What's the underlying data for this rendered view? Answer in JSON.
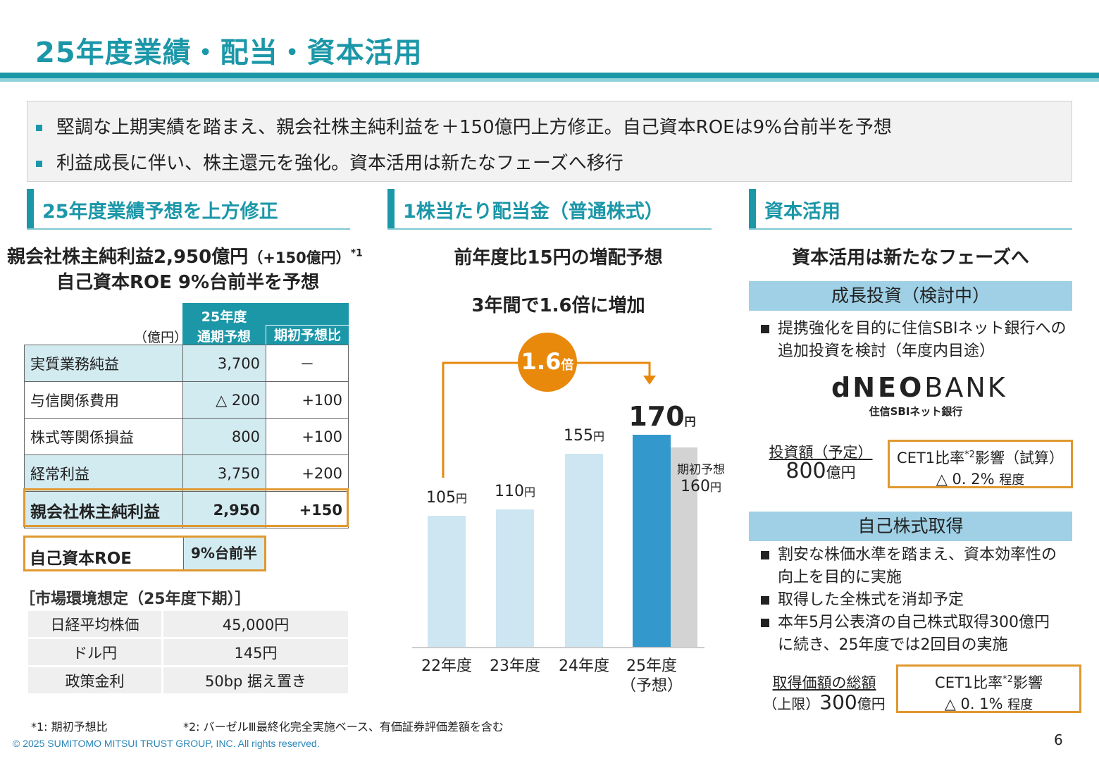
{
  "title": "25年度業績・配当・資本活用",
  "summary": [
    "堅調な上期実績を踏まえ、親会社株主純利益を＋150億円上方修正。自己資本ROEは9%台前半を予想",
    "利益成長に伴い、株主還元を強化。資本活用は新たなフェーズへ移行"
  ],
  "left": {
    "header": "25年度業績予想を上方修正",
    "headline1": "親会社株主純利益2,950億円",
    "headline1_paren": "（+150億円）",
    "headline1_note": "*1",
    "headline2": "自己資本ROE 9%台前半を予想",
    "unit": "（億円）",
    "col1_line1": "25年度",
    "col1_line2": "通期予想",
    "col2": "期初予想比",
    "rows": [
      {
        "label": "実質業務純益",
        "value": "3,700",
        "diff": "－"
      },
      {
        "label": "与信関係費用",
        "value": "△ 200",
        "diff": "+100"
      },
      {
        "label": "株式等関係損益",
        "value": "800",
        "diff": "+100"
      },
      {
        "label": "経常利益",
        "value": "3,750",
        "diff": "+200"
      },
      {
        "label": "親会社株主純利益",
        "value": "2,950",
        "diff": "+150"
      }
    ],
    "roe_label": "自己資本ROE",
    "roe_value": "9%台前半",
    "market_title": "［市場環境想定（25年度下期）］",
    "market": [
      {
        "label": "日経平均株価",
        "value": "45,000円"
      },
      {
        "label": "ドル円",
        "value": "145円"
      },
      {
        "label": "政策金利",
        "value": "50bp 据え置き"
      }
    ]
  },
  "middle": {
    "header": "1株当たり配当金（普通株式）",
    "headline": "前年度比15円の増配予想",
    "subhead": "3年間で1.6倍に増加",
    "badge": "1.6",
    "badge_unit": "倍"
  },
  "chart_data": {
    "type": "bar",
    "unit": "円",
    "categories": [
      "22年度",
      "23年度",
      "24年度",
      "25年度"
    ],
    "category_sub": [
      "",
      "",
      "",
      "（予想）"
    ],
    "values": [
      105,
      110,
      155,
      170
    ],
    "initial_forecast": {
      "label": "期初予想",
      "value": 160
    },
    "colors": {
      "past": "#cde6f2",
      "current": "#3399cc",
      "initial": "#d3d3d3",
      "accent": "#e8890c"
    }
  },
  "right": {
    "header": "資本活用",
    "headline": "資本活用は新たなフェーズへ",
    "growth": {
      "title": "成長投資（検討中）",
      "bullet1": "提携強化を目的に住信SBIネット銀行への",
      "bullet1b": "追加投資を検討（年度内目途）",
      "logo": "dNEOBANK",
      "logo_sub": "住信SBIネット銀行",
      "amount_label": "投資額（予定）",
      "amount": "800",
      "amount_unit": "億円",
      "cet_label": "CET1比率",
      "cet_note": "*2",
      "cet_label2": "影響（試算）",
      "cet_value": "△ 0. 2%",
      "cet_suffix": "程度"
    },
    "buyback": {
      "title": "自己株式取得",
      "bullets": [
        [
          "割安な株価水準を踏まえ、資本効率性の",
          "向上を目的に実施"
        ],
        [
          "取得した全株式を消却予定"
        ],
        [
          "本年5月公表済の自己株式取得300億円",
          "に続き、25年度では2回目の実施"
        ]
      ],
      "amount_label": "取得価額の総額",
      "amount_prefix": "（上限）",
      "amount": "300",
      "amount_unit": "億円",
      "cet_label": "CET1比率",
      "cet_note": "*2",
      "cet_label2": "影響",
      "cet_value": "△ 0. 1%",
      "cet_suffix": "程度"
    }
  },
  "footnotes": {
    "n1": "*1: 期初予想比",
    "n2": "*2: バーゼルⅢ最終化完全実施ベース、有価証券評価差額を含む"
  },
  "copyright": "© 2025 SUMITOMO MITSUI TRUST GROUP, INC. All rights reserved.",
  "page": "6"
}
